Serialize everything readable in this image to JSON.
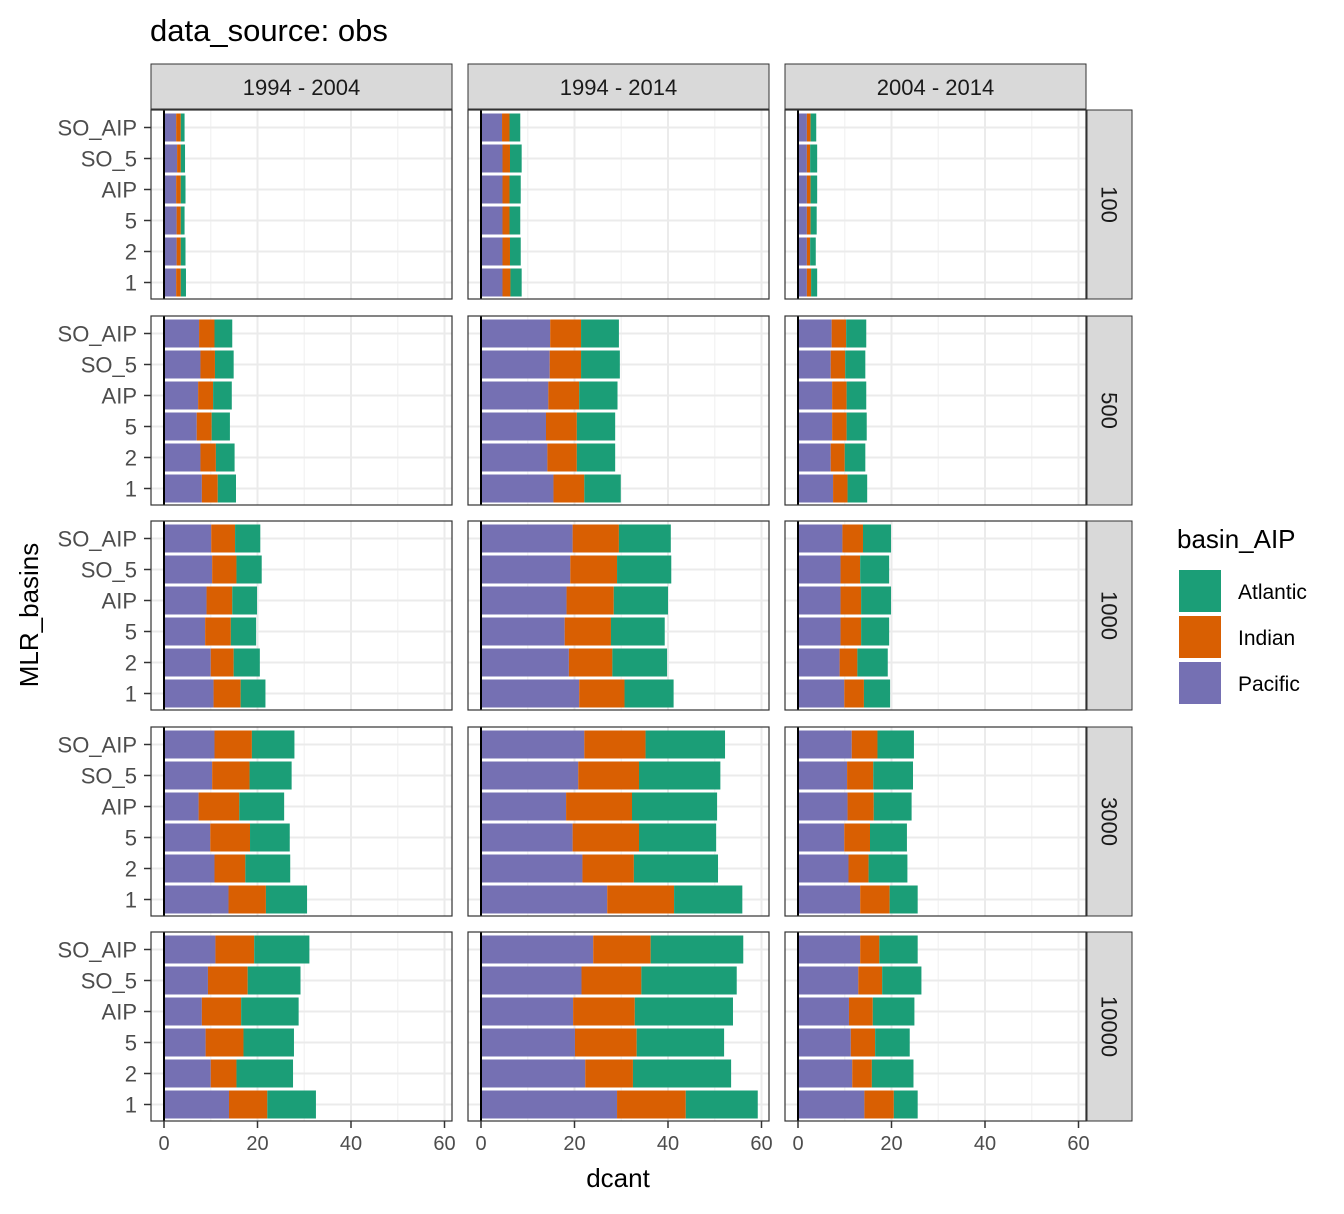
{
  "title": "data_source: obs",
  "chart_data": {
    "type": "bar",
    "orientation": "horizontal",
    "stacked": true,
    "title": "data_source: obs",
    "xlabel": "dcant",
    "ylabel": "MLR_basins",
    "xlim": [
      0,
      60
    ],
    "x_ticks": [
      "0",
      "20",
      "40",
      "60"
    ],
    "grid": true,
    "legend_title": "basin_AIP",
    "legend_position": "right",
    "col_facets": [
      "1994 - 2004",
      "1994 - 2014",
      "2004 - 2014"
    ],
    "row_facets": [
      "100",
      "500",
      "1000",
      "3000",
      "10000"
    ],
    "categories": [
      "SO_AIP",
      "SO_5",
      "AIP",
      "5",
      "2",
      "1"
    ],
    "series": [
      {
        "name": "Pacific",
        "color": "#7570B3"
      },
      {
        "name": "Indian",
        "color": "#D95F02"
      },
      {
        "name": "Atlantic",
        "color": "#1B9E77"
      }
    ],
    "legend_order": [
      "Atlantic",
      "Indian",
      "Pacific"
    ],
    "panels": [
      {
        "col": "1994 - 2004",
        "row": "100",
        "values": [
          [
            2.6,
            1.0,
            0.8
          ],
          [
            2.8,
            0.8,
            0.9
          ],
          [
            2.6,
            1.0,
            1.0
          ],
          [
            2.7,
            0.9,
            0.8
          ],
          [
            2.7,
            0.9,
            1.0
          ],
          [
            2.6,
            1.0,
            1.1
          ]
        ]
      },
      {
        "col": "1994 - 2014",
        "row": "100",
        "values": [
          [
            4.5,
            1.6,
            2.3
          ],
          [
            4.6,
            1.6,
            2.5
          ],
          [
            4.6,
            1.5,
            2.4
          ],
          [
            4.6,
            1.5,
            2.3
          ],
          [
            4.6,
            1.6,
            2.3
          ],
          [
            4.6,
            1.7,
            2.4
          ]
        ]
      },
      {
        "col": "2004 - 2014",
        "row": "100",
        "values": [
          [
            1.9,
            0.8,
            1.2
          ],
          [
            1.9,
            0.7,
            1.5
          ],
          [
            1.9,
            0.8,
            1.4
          ],
          [
            1.9,
            0.8,
            1.3
          ],
          [
            1.9,
            0.7,
            1.2
          ],
          [
            1.9,
            0.9,
            1.3
          ]
        ]
      },
      {
        "col": "1994 - 2004",
        "row": "500",
        "values": [
          [
            7.5,
            3.3,
            3.8
          ],
          [
            7.8,
            3.1,
            4.0
          ],
          [
            7.3,
            3.2,
            4.0
          ],
          [
            7.0,
            3.2,
            3.9
          ],
          [
            7.8,
            3.3,
            4.0
          ],
          [
            8.1,
            3.4,
            3.9
          ]
        ]
      },
      {
        "col": "1994 - 2014",
        "row": "500",
        "values": [
          [
            14.8,
            6.6,
            8.1
          ],
          [
            14.7,
            6.7,
            8.3
          ],
          [
            14.4,
            6.6,
            8.2
          ],
          [
            13.9,
            6.6,
            8.2
          ],
          [
            14.2,
            6.3,
            8.2
          ],
          [
            15.5,
            6.6,
            7.8
          ]
        ]
      },
      {
        "col": "2004 - 2014",
        "row": "500",
        "values": [
          [
            7.2,
            3.1,
            4.3
          ],
          [
            7.0,
            3.1,
            4.3
          ],
          [
            7.3,
            3.1,
            4.2
          ],
          [
            7.3,
            3.1,
            4.3
          ],
          [
            7.0,
            3.0,
            4.4
          ],
          [
            7.5,
            3.1,
            4.2
          ]
        ]
      },
      {
        "col": "1994 - 2004",
        "row": "1000",
        "values": [
          [
            10.1,
            5.1,
            5.4
          ],
          [
            10.3,
            5.2,
            5.4
          ],
          [
            9.1,
            5.5,
            5.3
          ],
          [
            8.8,
            5.5,
            5.4
          ],
          [
            10.0,
            4.9,
            5.6
          ],
          [
            10.6,
            5.8,
            5.3
          ]
        ]
      },
      {
        "col": "1994 - 2014",
        "row": "1000",
        "values": [
          [
            19.6,
            9.9,
            11.1
          ],
          [
            19.1,
            10.0,
            11.6
          ],
          [
            18.3,
            10.1,
            11.6
          ],
          [
            17.9,
            9.9,
            11.5
          ],
          [
            18.8,
            9.3,
            11.7
          ],
          [
            21.0,
            9.7,
            10.5
          ]
        ]
      },
      {
        "col": "2004 - 2014",
        "row": "1000",
        "values": [
          [
            9.5,
            4.4,
            6.0
          ],
          [
            9.1,
            4.2,
            6.2
          ],
          [
            9.1,
            4.4,
            6.4
          ],
          [
            9.1,
            4.4,
            6.0
          ],
          [
            8.9,
            3.8,
            6.5
          ],
          [
            9.9,
            4.2,
            5.6
          ]
        ]
      },
      {
        "col": "1994 - 2004",
        "row": "3000",
        "values": [
          [
            10.8,
            8.0,
            9.1
          ],
          [
            10.3,
            8.0,
            9.0
          ],
          [
            7.4,
            8.7,
            9.6
          ],
          [
            9.9,
            8.5,
            8.5
          ],
          [
            10.8,
            6.6,
            9.6
          ],
          [
            13.8,
            8.0,
            8.8
          ]
        ]
      },
      {
        "col": "1994 - 2014",
        "row": "3000",
        "values": [
          [
            22.1,
            13.1,
            17.0
          ],
          [
            20.8,
            13.0,
            17.4
          ],
          [
            18.2,
            14.1,
            18.2
          ],
          [
            19.6,
            14.2,
            16.5
          ],
          [
            21.7,
            11.0,
            18.0
          ],
          [
            27.0,
            14.3,
            14.6
          ]
        ]
      },
      {
        "col": "2004 - 2014",
        "row": "3000",
        "values": [
          [
            11.5,
            5.5,
            7.8
          ],
          [
            10.5,
            5.6,
            8.5
          ],
          [
            10.6,
            5.6,
            8.1
          ],
          [
            9.9,
            5.5,
            7.9
          ],
          [
            10.8,
            4.3,
            8.3
          ],
          [
            13.3,
            6.3,
            6.0
          ]
        ]
      },
      {
        "col": "1994 - 2004",
        "row": "10000",
        "values": [
          [
            11.0,
            8.3,
            11.8
          ],
          [
            9.4,
            8.5,
            11.3
          ],
          [
            8.1,
            8.4,
            12.3
          ],
          [
            8.9,
            8.1,
            10.8
          ],
          [
            10.0,
            5.5,
            12.1
          ],
          [
            13.9,
            8.2,
            10.4
          ]
        ]
      },
      {
        "col": "1994 - 2014",
        "row": "10000",
        "values": [
          [
            24.0,
            12.3,
            19.8
          ],
          [
            21.5,
            12.8,
            20.4
          ],
          [
            19.7,
            13.2,
            21.0
          ],
          [
            20.1,
            13.2,
            18.7
          ],
          [
            22.3,
            10.2,
            21.0
          ],
          [
            29.1,
            14.7,
            15.4
          ]
        ]
      },
      {
        "col": "2004 - 2014",
        "row": "10000",
        "values": [
          [
            13.3,
            4.1,
            8.2
          ],
          [
            12.9,
            5.1,
            8.4
          ],
          [
            10.9,
            5.1,
            8.9
          ],
          [
            11.3,
            5.2,
            7.4
          ],
          [
            11.6,
            4.2,
            8.9
          ],
          [
            14.2,
            6.3,
            5.1
          ]
        ]
      }
    ]
  }
}
